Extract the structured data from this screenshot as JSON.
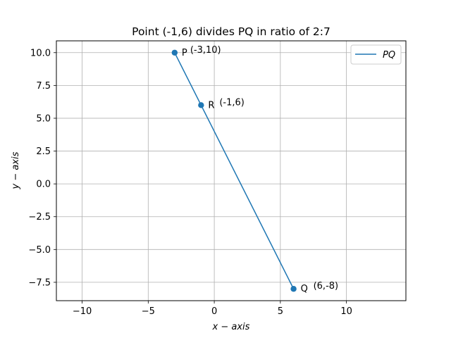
{
  "chart_data": {
    "type": "line",
    "title": "Point (-1,6) divides PQ in ratio of 2:7",
    "xlabel": "x − axis",
    "ylabel": "y − axis",
    "xlim": [
      -11.95,
      14.5
    ],
    "ylim": [
      -8.9,
      10.9
    ],
    "grid": true,
    "legend": {
      "position": "top-right",
      "entries": [
        "PQ"
      ]
    },
    "x_ticks": [
      -10,
      -5,
      0,
      5,
      10
    ],
    "y_ticks": [
      -7.5,
      -5.0,
      -2.5,
      0.0,
      2.5,
      5.0,
      7.5,
      10.0
    ],
    "x_tick_labels": [
      "−10",
      "−5",
      "0",
      "5",
      "10"
    ],
    "y_tick_labels": [
      "−7.5",
      "−5.0",
      "−2.5",
      "0.0",
      "2.5",
      "5.0",
      "7.5",
      "10.0"
    ],
    "series": [
      {
        "name": "PQ",
        "x": [
          -3,
          6
        ],
        "y": [
          10,
          -8
        ],
        "color": "#1f77b4"
      }
    ],
    "points": [
      {
        "x": -3,
        "y": 10,
        "color": "#1f77b4"
      },
      {
        "x": -1,
        "y": 6,
        "color": "#1f77b4"
      },
      {
        "x": 6,
        "y": -8,
        "color": "#1f77b4"
      }
    ],
    "annotations": [
      {
        "text": "P",
        "x": -3,
        "y": 10
      },
      {
        "text": "(-3,10)",
        "x": -3,
        "y": 10
      },
      {
        "text": "R",
        "x": -1,
        "y": 6
      },
      {
        "text": "(-1,6)",
        "x": -1,
        "y": 6
      },
      {
        "text": "Q",
        "x": 6,
        "y": -8
      },
      {
        "text": "(6,-8)",
        "x": 6,
        "y": -8
      }
    ]
  }
}
